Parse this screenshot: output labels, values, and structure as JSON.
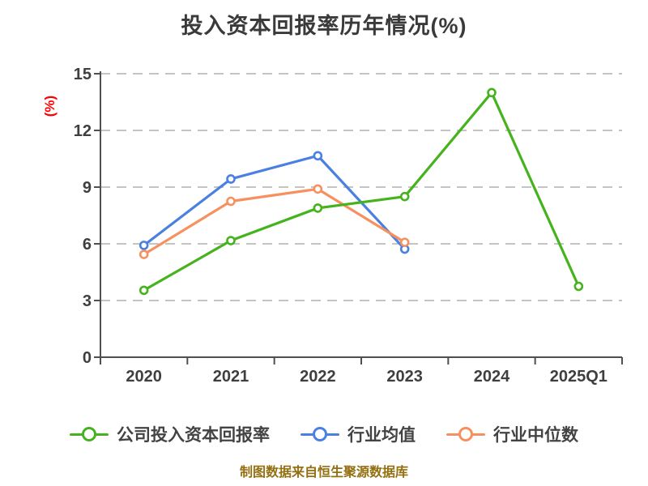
{
  "title": "投入资本回报率历年情况(%)",
  "y_unit_label": "(%)",
  "footnote": "制图数据来自恒生聚源数据库",
  "palette": {
    "title_text": "#3a3a3a",
    "y_unit_text": "#ff0000",
    "grid_line": "#c4c4c4",
    "axis_line": "#4f4f4f",
    "tick_label": "#3f3f3f",
    "legend_text": "#434343",
    "footnote_text": "#946f10",
    "marker_fill": "#ffffff"
  },
  "chart_data": {
    "type": "line",
    "title": "投入资本回报率历年情况(%)",
    "xlabel": "",
    "ylabel": "(%)",
    "categories": [
      "2020",
      "2021",
      "2022",
      "2023",
      "2024",
      "2025Q1"
    ],
    "series": [
      {
        "key": "company-roic",
        "name": "公司投入资本回报率",
        "color": "#46b31e",
        "values": [
          3.54,
          6.17,
          7.89,
          8.5,
          14.0,
          3.75
        ]
      },
      {
        "key": "industry-mean",
        "name": "行业均值",
        "color": "#4a80e1",
        "values": [
          5.92,
          9.43,
          10.66,
          5.72,
          null,
          null
        ]
      },
      {
        "key": "industry-median",
        "name": "行业中位数",
        "color": "#f7905f",
        "values": [
          5.44,
          8.25,
          8.9,
          6.08,
          null,
          null
        ]
      }
    ],
    "ylim": [
      0,
      15
    ],
    "yticks": [
      0,
      3,
      6,
      9,
      12,
      15
    ],
    "grid": "horizontal dashed",
    "legend_position": "bottom",
    "marker_style": "hollow circle"
  }
}
